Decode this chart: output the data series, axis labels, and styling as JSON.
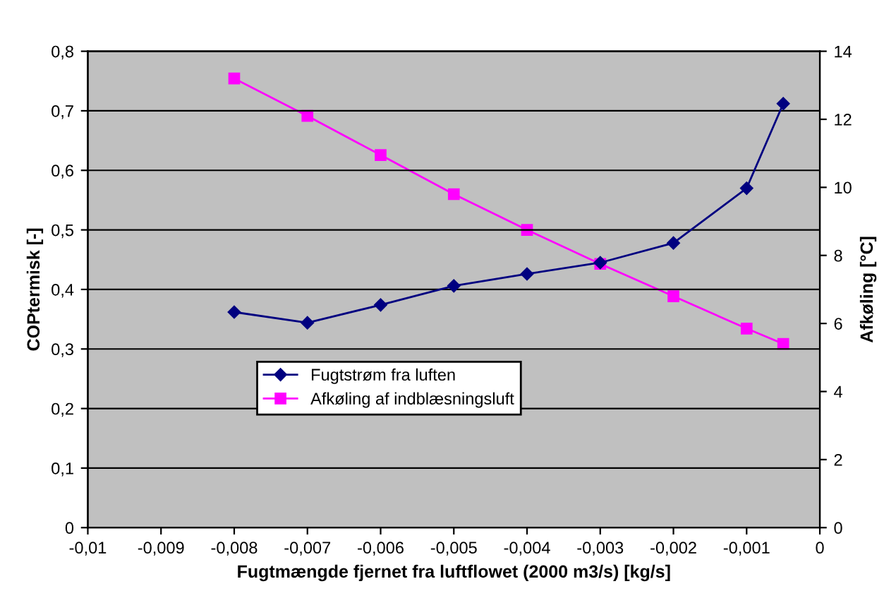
{
  "chart_data": {
    "type": "line",
    "xlabel": "Fugtmængde fjernet fra luftflowet (2000 m3/s) [kg/s]",
    "ylabel": "COPtermisk [-]",
    "y2label": "Afkøling [°C]",
    "x": [
      -0.008,
      -0.007,
      -0.006,
      -0.005,
      -0.004,
      -0.003,
      -0.002,
      -0.001,
      -0.0005
    ],
    "series": [
      {
        "name": "Fugtstrøm fra luften",
        "color": "#000080",
        "marker": "diamond",
        "values": [
          0.362,
          0.344,
          0.374,
          0.406,
          0.426,
          0.445,
          0.478,
          0.57,
          0.712
        ]
      },
      {
        "name": "Afkøling af indblæsningsluft",
        "color": "#ff00ff",
        "marker": "square",
        "axis": "y2",
        "values": [
          13.2,
          12.1,
          10.95,
          9.8,
          8.75,
          7.75,
          6.8,
          5.85,
          5.4
        ]
      }
    ],
    "xlim": [
      -0.01,
      0
    ],
    "xticks": [
      {
        "value": -0.01,
        "label": "-0,01"
      },
      {
        "value": -0.009,
        "label": "-0,009"
      },
      {
        "value": -0.008,
        "label": "-0,008"
      },
      {
        "value": -0.007,
        "label": "-0,007"
      },
      {
        "value": -0.006,
        "label": "-0,006"
      },
      {
        "value": -0.005,
        "label": "-0,005"
      },
      {
        "value": -0.004,
        "label": "-0,004"
      },
      {
        "value": -0.003,
        "label": "-0,003"
      },
      {
        "value": -0.002,
        "label": "-0,002"
      },
      {
        "value": -0.001,
        "label": "-0,001"
      },
      0
    ],
    "ylim": [
      0,
      0.8
    ],
    "yticks": [
      0,
      {
        "value": 0.1,
        "label": "0,1"
      },
      {
        "value": 0.2,
        "label": "0,2"
      },
      {
        "value": 0.3,
        "label": "0,3"
      },
      {
        "value": 0.4,
        "label": "0,4"
      },
      {
        "value": 0.5,
        "label": "0,5"
      },
      {
        "value": 0.6,
        "label": "0,6"
      },
      {
        "value": 0.7,
        "label": "0,7"
      },
      {
        "value": 0.8,
        "label": "0,8"
      }
    ],
    "y2lim": [
      0,
      14
    ],
    "y2ticks": [
      0,
      2,
      4,
      6,
      8,
      10,
      12,
      14
    ],
    "grid": "y",
    "legend": "bottom left",
    "line_style": "solid"
  }
}
